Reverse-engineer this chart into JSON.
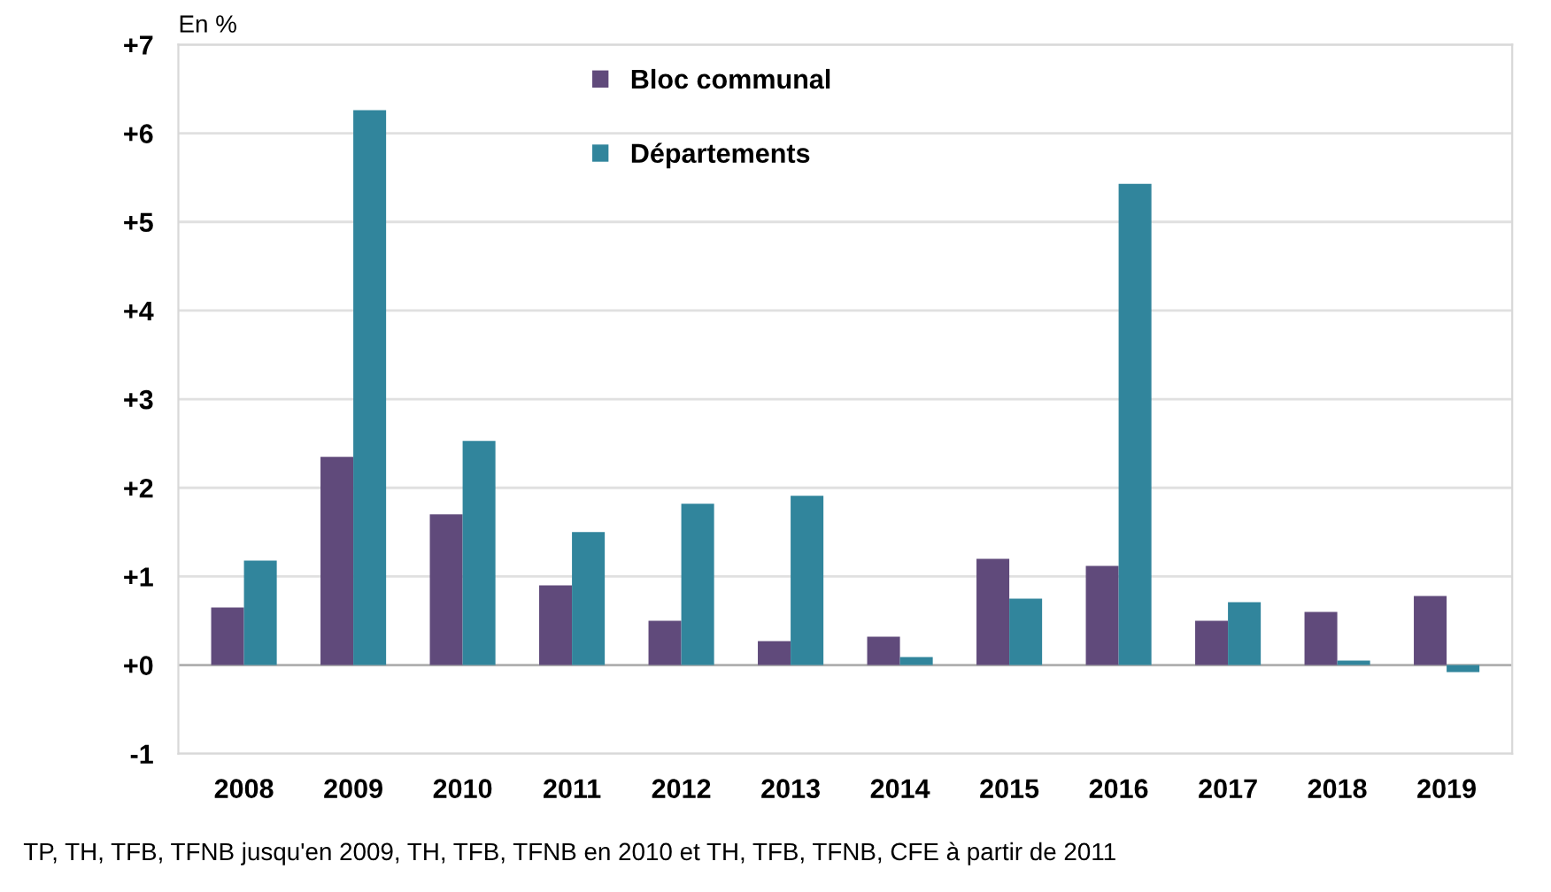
{
  "chart_data": {
    "type": "bar",
    "ylabel": "En %",
    "categories": [
      "2008",
      "2009",
      "2010",
      "2011",
      "2012",
      "2013",
      "2014",
      "2015",
      "2016",
      "2017",
      "2018",
      "2019"
    ],
    "series": [
      {
        "name": "Bloc communal",
        "color": "#604a7b",
        "values": [
          0.65,
          2.35,
          1.7,
          0.9,
          0.5,
          0.27,
          0.32,
          1.2,
          1.12,
          0.5,
          0.6,
          0.78
        ]
      },
      {
        "name": "Départements",
        "color": "#31859c",
        "values": [
          1.18,
          6.26,
          2.53,
          1.5,
          1.82,
          1.91,
          0.09,
          0.75,
          5.43,
          0.71,
          0.05,
          -0.08
        ]
      }
    ],
    "ylim": [
      -1,
      7
    ],
    "yticks": [
      {
        "value": -1,
        "label": "-1"
      },
      {
        "value": 0,
        "label": "+0"
      },
      {
        "value": 1,
        "label": "+1"
      },
      {
        "value": 2,
        "label": "+2"
      },
      {
        "value": 3,
        "label": "+3"
      },
      {
        "value": 4,
        "label": "+4"
      },
      {
        "value": 5,
        "label": "+5"
      },
      {
        "value": 6,
        "label": "+6"
      },
      {
        "value": 7,
        "label": "+7"
      }
    ],
    "grid": "y",
    "legend": "top",
    "annotations": [
      "TP, TH, TFB, TFNB jusqu'en 2009, TH, TFB, TFNB en 2010 et TH, TFB, TFNB, CFE à partir de 2011"
    ]
  }
}
